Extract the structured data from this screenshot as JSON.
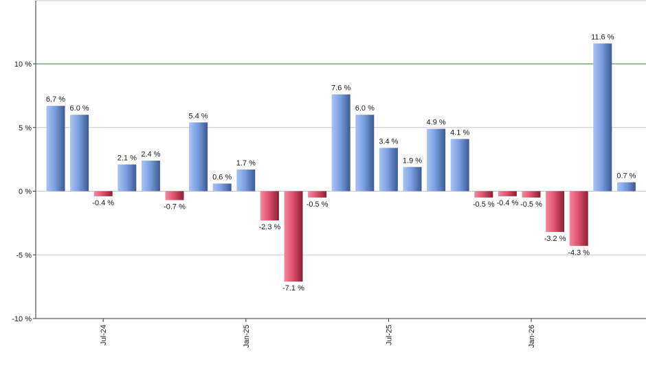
{
  "chart_data": {
    "type": "bar",
    "title": "",
    "xlabel": "",
    "ylabel": "",
    "ylim": [
      -10,
      15
    ],
    "y_ticks": [
      {
        "value": 10,
        "label": "10 %"
      },
      {
        "value": 5,
        "label": "5 %"
      },
      {
        "value": 0,
        "label": "0 %"
      },
      {
        "value": -5,
        "label": "-5 %"
      },
      {
        "value": -10,
        "label": "-10 %"
      }
    ],
    "x_ticks": [
      {
        "index": 2,
        "label": "Jul-24"
      },
      {
        "index": 8,
        "label": "Jan-25"
      },
      {
        "index": 14,
        "label": "Jul-25"
      },
      {
        "index": 20,
        "label": "Jan-26"
      }
    ],
    "reference_line": {
      "value": 10,
      "color": "#2e7d32"
    },
    "grid": true,
    "colors": {
      "positive": "#7a9fe0",
      "positive_dark": "#3c5a94",
      "negative": "#e0536e",
      "negative_dark": "#8c1e35"
    },
    "values": [
      6.7,
      6.0,
      -0.4,
      2.1,
      2.4,
      -0.7,
      5.4,
      0.6,
      1.7,
      -2.3,
      -7.1,
      -0.5,
      7.6,
      6.0,
      3.4,
      1.9,
      4.9,
      4.1,
      -0.5,
      -0.4,
      -0.5,
      -3.2,
      -4.3,
      11.6,
      0.7
    ],
    "data_labels": [
      "6.7 %",
      "6.0 %",
      "-0.4 %",
      "2.1 %",
      "2.4 %",
      "-0.7 %",
      "5.4 %",
      "0.6 %",
      "1.7 %",
      "-2.3 %",
      "-7.1 %",
      "-0.5 %",
      "7.6 %",
      "6.0 %",
      "3.4 %",
      "1.9 %",
      "4.9 %",
      "4.1 %",
      "-0.5 %",
      "-0.4 %",
      "-0.5 %",
      "-3.2 %",
      "-4.3 %",
      "11.6 %",
      "0.7 %"
    ]
  }
}
